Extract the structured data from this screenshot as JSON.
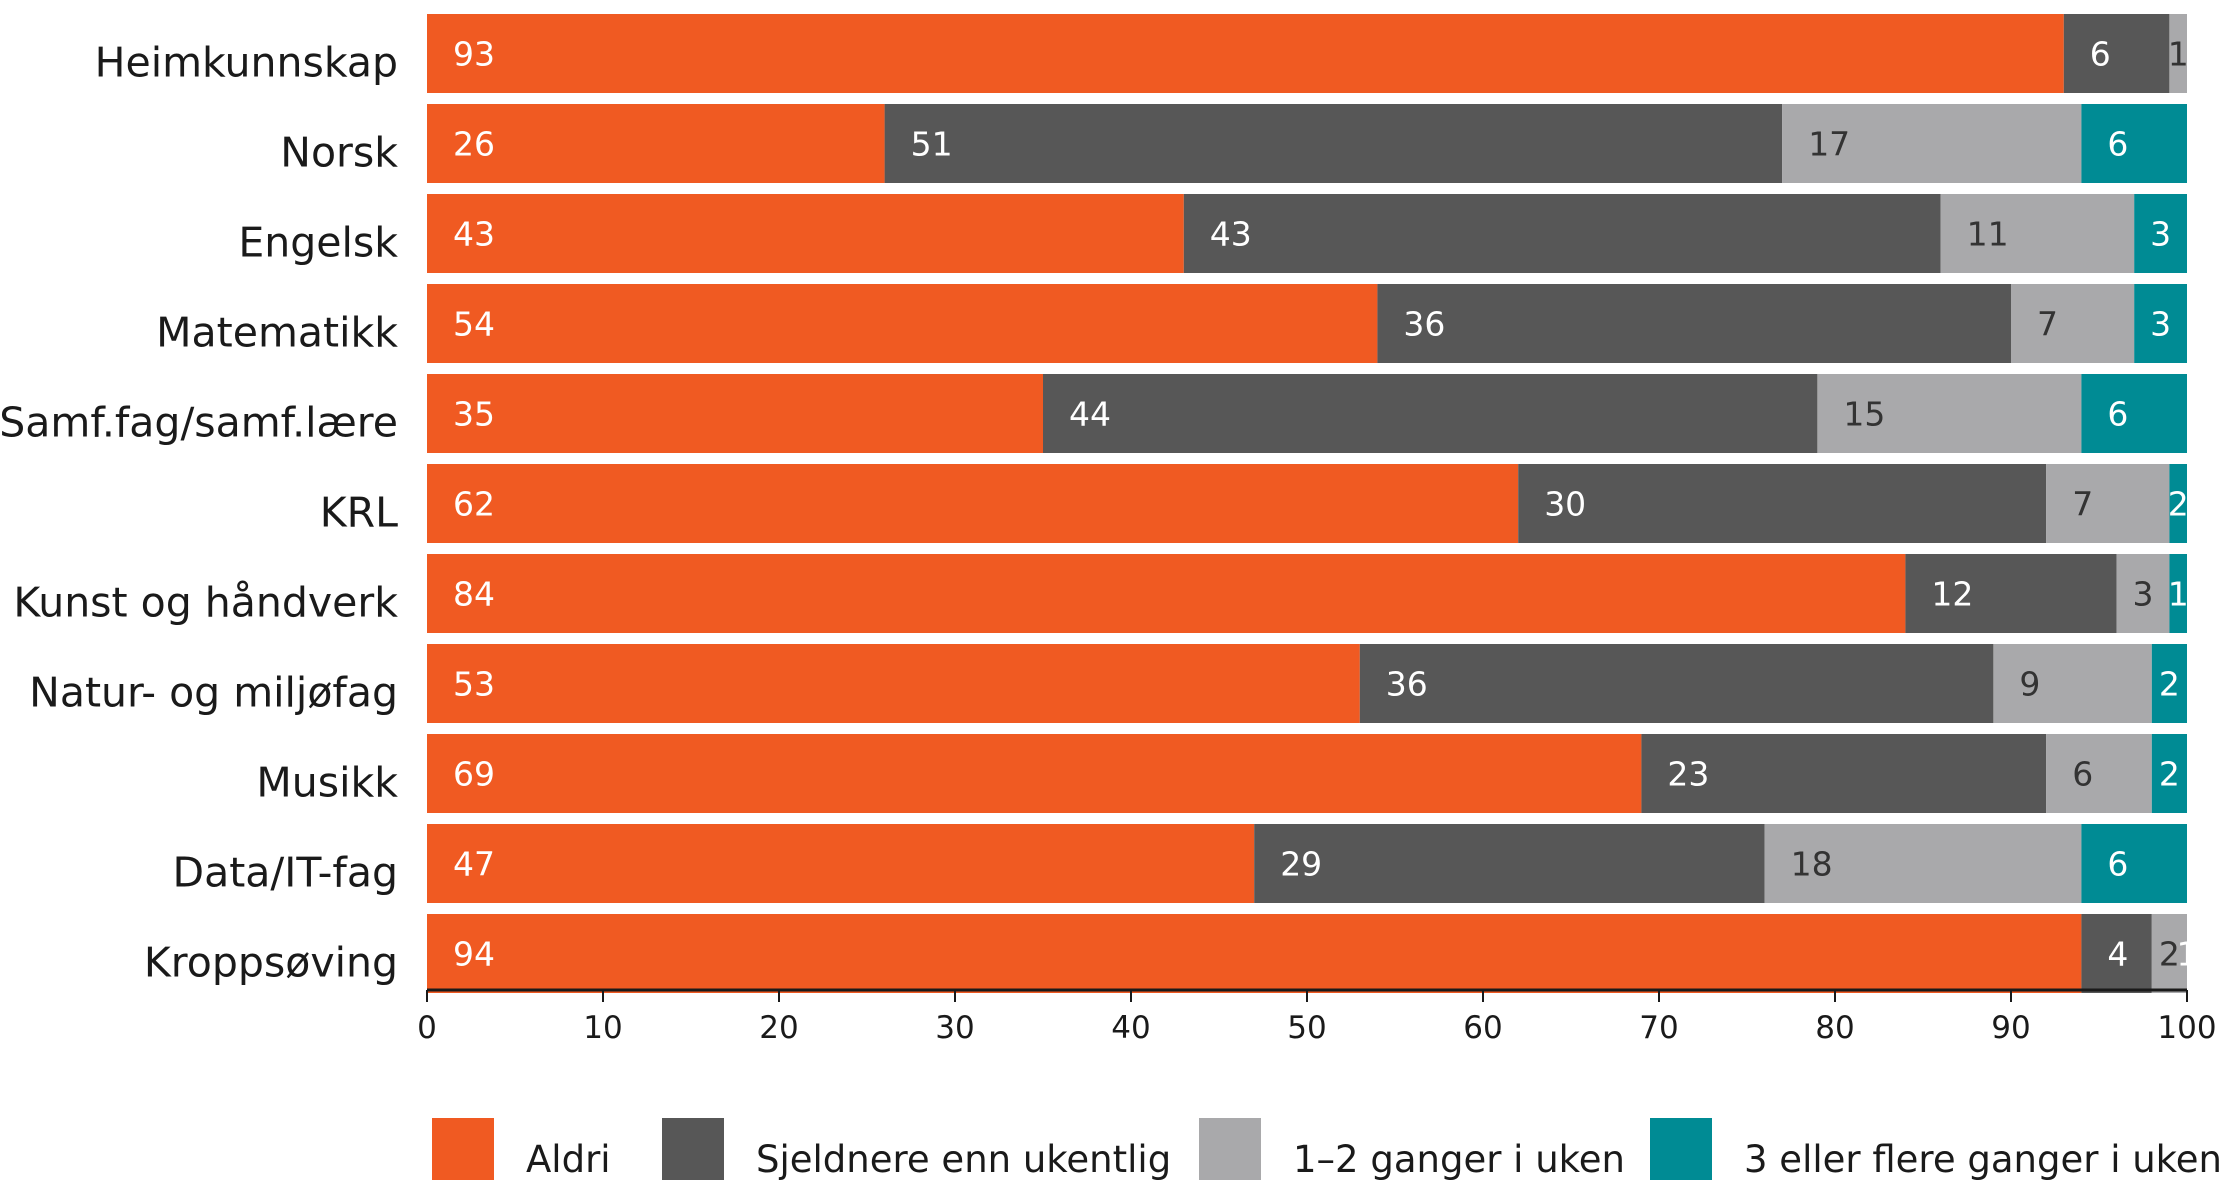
{
  "chart_data": {
    "type": "bar",
    "orientation": "horizontal",
    "stacked": true,
    "categories": [
      "Heimkunnskap",
      "Norsk",
      "Engelsk",
      "Matematikk",
      "Samf.fag/samf.lære",
      "KRL",
      "Kunst og håndverk",
      "Natur- og miljøfag",
      "Musikk",
      "Data/IT-fag",
      "Kroppsøving"
    ],
    "series": [
      {
        "name": "Aldri",
        "color": "#f05a22",
        "label_color": "#ffffff",
        "values": [
          93,
          26,
          43,
          54,
          35,
          62,
          84,
          53,
          69,
          47,
          94
        ]
      },
      {
        "name": "Sjeldnere enn ukentlig",
        "color": "#575757",
        "label_color": "#ffffff",
        "values": [
          6,
          51,
          43,
          36,
          44,
          30,
          12,
          36,
          23,
          29,
          4
        ]
      },
      {
        "name": "1–2 ganger i uken",
        "color": "#a9a9ab",
        "label_color": "#333333",
        "values": [
          1,
          17,
          11,
          7,
          15,
          7,
          3,
          9,
          6,
          18,
          2
        ]
      },
      {
        "name": "3 eller flere ganger i uken",
        "color": "#008b94",
        "label_color": "#ffffff",
        "values": [
          null,
          6,
          3,
          3,
          6,
          2,
          1,
          2,
          2,
          6,
          1
        ]
      }
    ],
    "xlim": [
      0,
      100
    ],
    "xticks": [
      0,
      10,
      20,
      30,
      40,
      50,
      60,
      70,
      80,
      90,
      100
    ],
    "grid": false,
    "legend_position": "bottom"
  }
}
